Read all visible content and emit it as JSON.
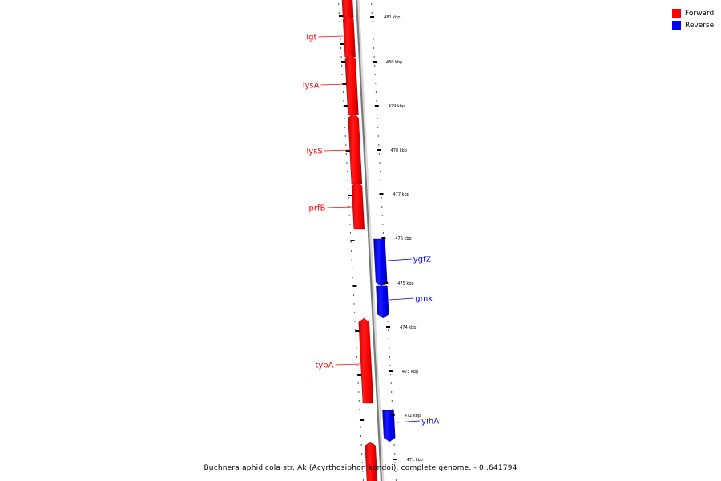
{
  "legend": {
    "forward": {
      "label": "Forward",
      "color": "#ff0000"
    },
    "reverse": {
      "label": "Reverse",
      "color": "#0000ff"
    }
  },
  "caption": "Buchnera aphidicola str. Ak (Acyrthosiphon kondoi), complete genome. - 0..641794",
  "ticks": [
    {
      "label": "481 kbp"
    },
    {
      "label": "480 kbp"
    },
    {
      "label": "479 kbp"
    },
    {
      "label": "478 kbp"
    },
    {
      "label": "477 kbp"
    },
    {
      "label": "476 kbp"
    },
    {
      "label": "475 kbp"
    },
    {
      "label": "474 kbp"
    },
    {
      "label": "473 kbp"
    },
    {
      "label": "472 kbp"
    },
    {
      "label": "471 kbp"
    }
  ],
  "genes": [
    {
      "name": "lgt",
      "strand": "forward"
    },
    {
      "name": "lysA",
      "strand": "forward"
    },
    {
      "name": "lysS",
      "strand": "forward"
    },
    {
      "name": "prfB",
      "strand": "forward"
    },
    {
      "name": "ygfZ",
      "strand": "reverse"
    },
    {
      "name": "gmk",
      "strand": "reverse"
    },
    {
      "name": "typA",
      "strand": "forward"
    },
    {
      "name": "yihA",
      "strand": "reverse"
    }
  ]
}
